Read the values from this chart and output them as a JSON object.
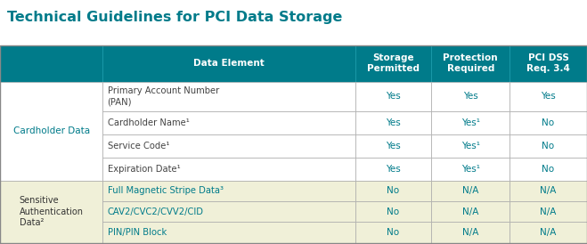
{
  "title": "Technical Guidelines for PCI Data Storage",
  "title_color": "#007b8a",
  "header_bg": "#007b8a",
  "header_text_color": "#ffffff",
  "header_labels": [
    "",
    "Data Element",
    "Storage\nPermitted",
    "Protection\nRequired",
    "PCI DSS\nReq. 3.4"
  ],
  "row_group1_label": "Cardholder Data",
  "row_group1_label_color": "#007b8a",
  "row_group2_label": "Sensitive\nAuthentication\nData²",
  "row_group2_label_color": "#333333",
  "rows_group1": [
    [
      "Primary Account Number\n(PAN)",
      "Yes",
      "Yes",
      "Yes"
    ],
    [
      "Cardholder Name¹",
      "Yes",
      "Yes¹",
      "No"
    ],
    [
      "Service Code¹",
      "Yes",
      "Yes¹",
      "No"
    ],
    [
      "Expiration Date¹",
      "Yes",
      "Yes¹",
      "No"
    ]
  ],
  "rows_group2": [
    [
      "Full Magnetic Stripe Data³",
      "No",
      "N/A",
      "N/A"
    ],
    [
      "CAV2/CVC2/CVV2/CID",
      "No",
      "N/A",
      "N/A"
    ],
    [
      "PIN/PIN Block",
      "No",
      "N/A",
      "N/A"
    ]
  ],
  "group1_bg": "#ffffff",
  "group2_bg": "#f0f0d8",
  "border_color": "#aaaaaa",
  "teal_color": "#007b8a",
  "text_dark": "#444444",
  "data_col_color_g1": "#007b8a",
  "data_col_color_g2": "#007b8a",
  "data_elem_color_g2": "#007b8a",
  "data_elem_color_g1": "#444444"
}
